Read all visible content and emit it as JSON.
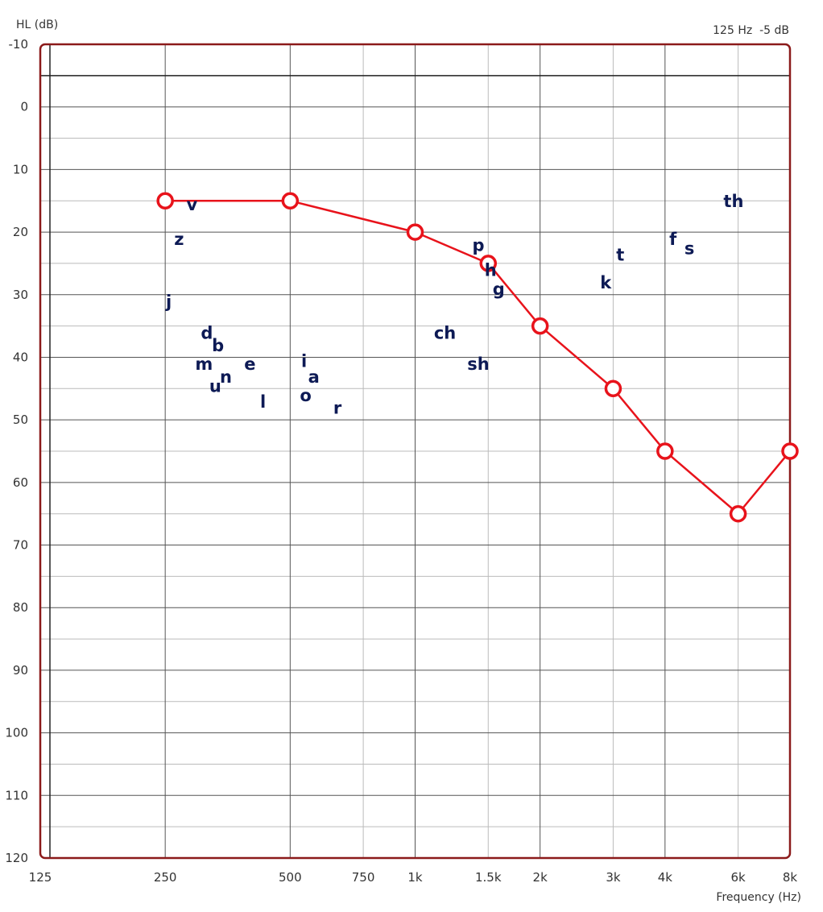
{
  "chart_data": {
    "type": "line",
    "ylabel": "HL (dB)",
    "xlabel": "Frequency (Hz)",
    "corner_info": "125 Hz  -5 dB",
    "x_scale": "log",
    "xlim": [
      125,
      8000
    ],
    "ylim": [
      -10,
      120
    ],
    "y_inverted": true,
    "grid": true,
    "x_ticks": [
      {
        "value": 125,
        "label": "125"
      },
      {
        "value": 250,
        "label": "250"
      },
      {
        "value": 500,
        "label": "500"
      },
      {
        "value": 750,
        "label": "750"
      },
      {
        "value": 1000,
        "label": "1k"
      },
      {
        "value": 1500,
        "label": "1.5k"
      },
      {
        "value": 2000,
        "label": "2k"
      },
      {
        "value": 3000,
        "label": "3k"
      },
      {
        "value": 4000,
        "label": "4k"
      },
      {
        "value": 6000,
        "label": "6k"
      },
      {
        "value": 8000,
        "label": "8k"
      }
    ],
    "y_ticks": [
      -10,
      0,
      10,
      20,
      30,
      40,
      50,
      60,
      70,
      80,
      90,
      100,
      110,
      120
    ],
    "series": [
      {
        "color": "#e8131b",
        "marker": "circle",
        "points": [
          {
            "x": 250,
            "y": 15
          },
          {
            "x": 500,
            "y": 15
          },
          {
            "x": 1000,
            "y": 20
          },
          {
            "x": 1500,
            "y": 25
          },
          {
            "x": 2000,
            "y": 35
          },
          {
            "x": 3000,
            "y": 45
          },
          {
            "x": 4000,
            "y": 55
          },
          {
            "x": 6000,
            "y": 65
          },
          {
            "x": 8000,
            "y": 55
          }
        ]
      }
    ],
    "speech_sounds": [
      {
        "text": "v",
        "x": 290,
        "y": 15.5
      },
      {
        "text": "z",
        "x": 270,
        "y": 21
      },
      {
        "text": "j",
        "x": 255,
        "y": 31
      },
      {
        "text": "d",
        "x": 315,
        "y": 36
      },
      {
        "text": "b",
        "x": 335,
        "y": 38
      },
      {
        "text": "m",
        "x": 310,
        "y": 41
      },
      {
        "text": "e",
        "x": 400,
        "y": 41
      },
      {
        "text": "n",
        "x": 350,
        "y": 43
      },
      {
        "text": "u",
        "x": 330,
        "y": 44.5
      },
      {
        "text": "l",
        "x": 430,
        "y": 47
      },
      {
        "text": "i",
        "x": 540,
        "y": 40.5
      },
      {
        "text": "a",
        "x": 570,
        "y": 43
      },
      {
        "text": "o",
        "x": 545,
        "y": 46
      },
      {
        "text": "r",
        "x": 650,
        "y": 48
      },
      {
        "text": "ch",
        "x": 1180,
        "y": 36
      },
      {
        "text": "sh",
        "x": 1420,
        "y": 41
      },
      {
        "text": "p",
        "x": 1420,
        "y": 22
      },
      {
        "text": "h",
        "x": 1520,
        "y": 26
      },
      {
        "text": "g",
        "x": 1590,
        "y": 29
      },
      {
        "text": "k",
        "x": 2880,
        "y": 28
      },
      {
        "text": "t",
        "x": 3120,
        "y": 23.5
      },
      {
        "text": "f",
        "x": 4180,
        "y": 21
      },
      {
        "text": "s",
        "x": 4580,
        "y": 22.5
      },
      {
        "text": "th",
        "x": 5850,
        "y": 15
      }
    ]
  }
}
